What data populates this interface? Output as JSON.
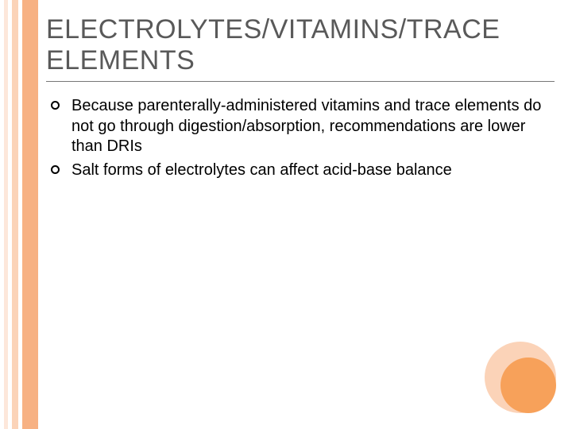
{
  "colors": {
    "stripe_outer": "#fde7da",
    "stripe_mid": "#fbd3b8",
    "stripe_inner": "#f7b183",
    "title": "#595959",
    "body_text": "#000000",
    "divider": "#777777",
    "circle_outer": "#fbd3b8",
    "circle_inner": "#f7a15a",
    "background": "#ffffff"
  },
  "title_fontsize": 34,
  "body_fontsize": 20,
  "title": "ELECTROLYTES/VITAMINS/TRACE ELEMENTS",
  "bullets": [
    "Because parenterally-administered vitamins and trace elements do not go through digestion/absorption, recommendations are lower than DRIs",
    "Salt forms of electrolytes can affect acid-base balance"
  ]
}
